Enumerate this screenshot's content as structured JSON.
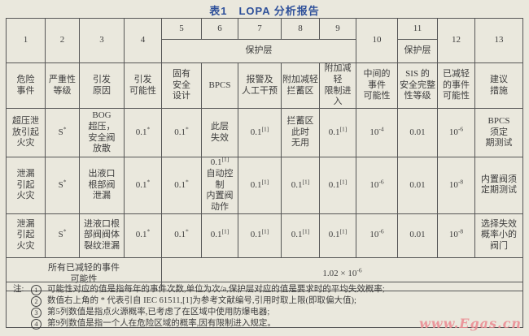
{
  "title": "表1　LOPA 分析报告",
  "header": {
    "col_numbers": [
      "1",
      "2",
      "3",
      "4",
      "5",
      "6",
      "7",
      "8",
      "9",
      "10",
      "11",
      "12",
      "13"
    ],
    "protection_layer_label": "保护层",
    "col_labels": [
      "危险\n事件",
      "严重性\n等级",
      "引发\n原因",
      "引发\n可能性",
      "固有\n安全\n设计",
      "BPCS",
      "报警及\n人工干预",
      "附加减轻\n拦蓄区",
      "附加减轻\n限制进入",
      "中间的\n事件\n可能性",
      "SIS 的\n安全完整\n性等级",
      "已减轻\n的事件\n可能性",
      "建议\n措施"
    ]
  },
  "rows": [
    {
      "cells": [
        "超压泄\n放引起\n火灾",
        "S^*",
        "BOG\n超压，\n安全阀\n放散",
        "0.1^*",
        "0.1^*",
        "此层\n失效",
        "0.1^[1]",
        "拦蓄区\n此时\n无用",
        "0.1^[1]",
        "10^-4",
        "0.01",
        "10^-6",
        "BPCS\n须定\n期测试"
      ]
    },
    {
      "cells": [
        "泄漏\n引起\n火灾",
        "S^*",
        "出液口\n根部阀\n泄漏",
        "0.1^*",
        "0.1^*",
        "0.1^[1]\n自动控制\n内置阀\n动作",
        "0.1^[1]",
        "0.1^[1]",
        "0.1^[1]",
        "10^-6",
        "0.01",
        "10^-8",
        "内置阀须\n定期测试"
      ]
    },
    {
      "cells": [
        "泄漏\n引起\n火灾",
        "S^*",
        "进液口根\n部阀阀体\n裂纹泄漏",
        "0.1^*",
        "0.1^*",
        "0.1^[1]",
        "0.1^[1]",
        "0.1^[1]",
        "0.1^[1]",
        "10^-6",
        "0.01",
        "10^-8",
        "选择失效\n概率小的\n阀门"
      ]
    }
  ],
  "summary": {
    "label": "所有已减轻的事件\n可能性",
    "value": "1.02 × 10^-6"
  },
  "notes": {
    "prefix": "注:",
    "items": [
      {
        "num": "1",
        "text": "可能性对应的值是指每年的事件次数,单位为次/a,保护层对应的值是要求时的平均失效概率;"
      },
      {
        "num": "2",
        "text": "数值右上角的 * 代表引自 IEC 61511,[1]为参考文献编号,引用时取上限(即取偏大值);"
      },
      {
        "num": "3",
        "text": "第5列数值是指点火源概率,已考虑了在区域中使用防爆电器;"
      },
      {
        "num": "4",
        "text": "第9列数值是指一个人在危险区域的概率,因有限制进入规定。"
      }
    ]
  },
  "watermark": "www.Egas.cn",
  "colors": {
    "title_blue": "#2e509a",
    "watermark_pink": "#ec8f96",
    "page_background": "#eae8dd",
    "grid_line": "#565656",
    "text": "#3d3d3d"
  }
}
